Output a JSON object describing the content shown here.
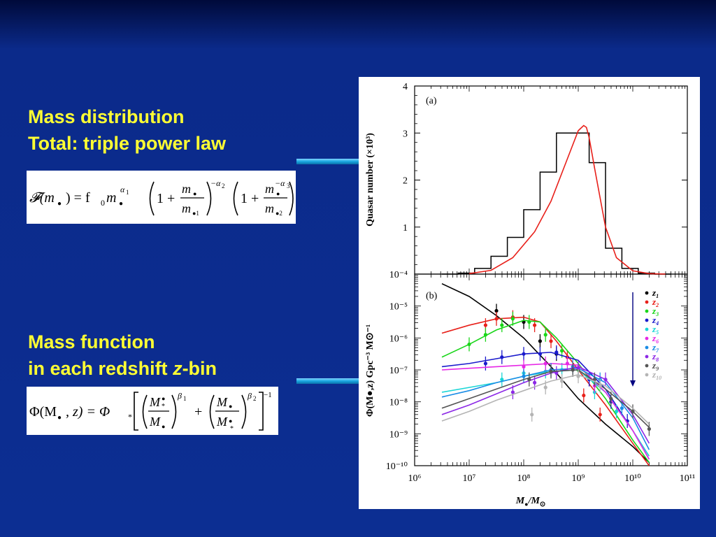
{
  "slide": {
    "heading1_line1": "Mass distribution",
    "heading1_line2": "Total: triple power law",
    "heading2_line1": "Mass function",
    "heading2_line2_a": "in each redshift ",
    "heading2_line2_z": "z",
    "heading2_line2_b": "-bin",
    "formula1_parts": {
      "lhs": "𝓕(m",
      "sub_dot": "●",
      "eq": ") = f",
      "f0_sub": "0",
      "m": "m",
      "alpha1": "α",
      "alpha1_sub": "1",
      "one_plus": "1 +",
      "alpha2": "−α",
      "alpha2_sub": "2",
      "alpha3": "−α",
      "alpha3_sub": "3",
      "den1_sub": "●1",
      "den2_sub": "●2"
    },
    "formula2_parts": {
      "lhs": "Φ(M",
      "z_part": ", z)  =  Φ",
      "star": "*",
      "beta1": "β",
      "beta1_sub": "1",
      "beta2": "β",
      "beta2_sub": "2",
      "plus": "+",
      "neg_one": "−1",
      "Mstar": "M",
      "M": "M"
    },
    "colors": {
      "text": "#ffff33",
      "arrow": "#1aa7e0"
    }
  },
  "chart_data": [
    {
      "type": "bar",
      "panel_label": "(a)",
      "ylabel": "Quasar number (×10³)",
      "xscale": "log",
      "xlim": [
        1000000,
        100000000000
      ],
      "ylim": [
        0,
        4
      ],
      "y_tick_labels": [
        "1",
        "2",
        "3",
        "4"
      ],
      "y_bottom_label": "10⁻⁴",
      "histogram_bins_log10": [
        6.5,
        6.8,
        7.1,
        7.4,
        7.7,
        8.0,
        8.3,
        8.6,
        8.9,
        9.2,
        9.5,
        9.8,
        10.1,
        10.4,
        10.7
      ],
      "histogram_values": [
        0,
        0.02,
        0.12,
        0.38,
        0.78,
        1.37,
        2.17,
        3.0,
        3.0,
        2.37,
        0.55,
        0.12,
        0.02,
        0.0
      ],
      "fit_curve_log10_x": [
        7.0,
        7.4,
        7.8,
        8.2,
        8.5,
        8.8,
        9.0,
        9.1,
        9.15,
        9.2,
        9.3,
        9.5,
        9.7,
        10.0,
        10.3,
        10.6
      ],
      "fit_curve_y": [
        0.01,
        0.08,
        0.35,
        0.9,
        1.55,
        2.45,
        3.05,
        3.16,
        3.12,
        2.9,
        2.25,
        1.0,
        0.35,
        0.07,
        0.01,
        0.0
      ],
      "colors": {
        "histogram": "#000000",
        "fit": "#e8201a"
      }
    },
    {
      "type": "line",
      "panel_label": "(b)",
      "xlabel": "M",
      "xlabel_sub": "●",
      "xlabel_rest": "/M",
      "xlabel_sun": "⊙",
      "ylabel": "Φ(M●,z) Gpc⁻³ M⊙⁻¹",
      "xscale": "log",
      "yscale": "log",
      "xlim": [
        1000000,
        100000000000
      ],
      "ylim": [
        1e-10,
        0.0001
      ],
      "x_tick_labels": [
        "10⁶",
        "10⁷",
        "10⁸",
        "10⁹",
        "10¹⁰",
        "10¹¹"
      ],
      "y_tick_labels": [
        "10⁻¹⁰",
        "10⁻⁹",
        "10⁻⁸",
        "10⁻⁷",
        "10⁻⁶",
        "10⁻⁵"
      ],
      "legend": {
        "position": "top-right",
        "entries": [
          "z1",
          "z2",
          "z3",
          "z4",
          "z5",
          "z6",
          "z7",
          "z8",
          "z9",
          "z10"
        ],
        "labels_main": [
          "z",
          "z",
          "z",
          "z",
          "z",
          "z",
          "z",
          "z",
          "z",
          "z"
        ],
        "labels_sub": [
          "1",
          "2",
          "3",
          "4",
          "5",
          "6",
          "7",
          "8",
          "9",
          "10"
        ],
        "arrow_color": "#000080"
      },
      "series": [
        {
          "name": "z1",
          "color": "#000000",
          "lx": [
            6.5,
            7.0,
            7.5,
            8.0,
            8.5,
            9.0,
            9.5,
            10.0,
            10.3
          ],
          "ly": [
            -4.3,
            -4.7,
            -5.3,
            -6.0,
            -6.9,
            -7.9,
            -8.7,
            -9.4,
            -9.9
          ],
          "pts": [
            [
              7.5,
              -5.15
            ],
            [
              8.0,
              -5.5
            ],
            [
              8.3,
              -6.1
            ],
            [
              8.6,
              -6.5
            ]
          ]
        },
        {
          "name": "z2",
          "color": "#e8201a",
          "lx": [
            6.5,
            7.0,
            7.5,
            8.0,
            8.3,
            8.6,
            9.0,
            9.5,
            10.0,
            10.3
          ],
          "ly": [
            -5.85,
            -5.6,
            -5.4,
            -5.35,
            -5.5,
            -6.1,
            -7.0,
            -8.1,
            -9.3,
            -10.0
          ],
          "pts": [
            [
              7.3,
              -5.6
            ],
            [
              7.5,
              -5.4
            ],
            [
              7.8,
              -5.35
            ],
            [
              8.2,
              -5.6
            ],
            [
              8.5,
              -6.1
            ],
            [
              8.8,
              -6.6
            ],
            [
              9.1,
              -7.8
            ],
            [
              9.4,
              -8.4
            ]
          ]
        },
        {
          "name": "z3",
          "color": "#19d619",
          "lx": [
            6.5,
            7.0,
            7.5,
            8.0,
            8.3,
            8.6,
            9.0,
            9.5,
            10.0,
            10.3
          ],
          "ly": [
            -6.6,
            -6.2,
            -5.75,
            -5.45,
            -5.5,
            -6.0,
            -6.8,
            -7.9,
            -9.2,
            -9.9
          ],
          "pts": [
            [
              7.0,
              -6.2
            ],
            [
              7.3,
              -5.9
            ],
            [
              7.6,
              -5.6
            ],
            [
              7.8,
              -5.4
            ],
            [
              8.1,
              -5.5
            ],
            [
              8.4,
              -5.9
            ],
            [
              8.7,
              -6.4
            ],
            [
              9.0,
              -7.0
            ]
          ]
        },
        {
          "name": "z4",
          "color": "#1a1acc",
          "lx": [
            6.5,
            7.0,
            7.5,
            8.0,
            8.5,
            9.0,
            9.5,
            10.0,
            10.3
          ],
          "ly": [
            -6.9,
            -6.8,
            -6.65,
            -6.5,
            -6.45,
            -6.7,
            -7.6,
            -8.9,
            -9.8
          ],
          "pts": [
            [
              7.3,
              -6.8
            ],
            [
              7.6,
              -6.6
            ],
            [
              8.0,
              -6.5
            ],
            [
              8.3,
              -6.5
            ],
            [
              8.6,
              -6.45
            ],
            [
              9.2,
              -7.3
            ],
            [
              9.6,
              -8.0
            ],
            [
              9.9,
              -8.6
            ]
          ]
        },
        {
          "name": "z5",
          "color": "#19d6d6",
          "lx": [
            6.5,
            7.0,
            7.5,
            8.0,
            8.5,
            9.0,
            9.5,
            10.0,
            10.3
          ],
          "ly": [
            -7.7,
            -7.55,
            -7.4,
            -7.2,
            -7.05,
            -7.0,
            -7.7,
            -8.9,
            -9.7
          ],
          "pts": [
            [
              7.6,
              -7.3
            ],
            [
              8.0,
              -7.1
            ],
            [
              8.4,
              -7.05
            ],
            [
              8.7,
              -7.0
            ],
            [
              9.3,
              -7.7
            ],
            [
              9.7,
              -8.3
            ]
          ]
        },
        {
          "name": "z6",
          "color": "#e628e6",
          "lx": [
            6.5,
            7.0,
            7.5,
            8.0,
            8.5,
            9.0,
            9.5,
            10.0,
            10.3
          ],
          "ly": [
            -7.0,
            -6.95,
            -6.9,
            -6.85,
            -6.8,
            -6.85,
            -7.7,
            -8.9,
            -9.8
          ],
          "pts": [
            [
              8.0,
              -6.9
            ],
            [
              8.4,
              -6.8
            ],
            [
              8.8,
              -6.8
            ],
            [
              9.3,
              -7.5
            ]
          ]
        },
        {
          "name": "z7",
          "color": "#1a8ce6",
          "lx": [
            6.5,
            7.0,
            7.5,
            8.0,
            8.5,
            9.0,
            9.5,
            10.0,
            10.3
          ],
          "ly": [
            -7.85,
            -7.65,
            -7.4,
            -7.2,
            -7.0,
            -6.95,
            -7.4,
            -8.5,
            -9.5
          ],
          "pts": [
            [
              8.0,
              -7.2
            ],
            [
              8.5,
              -7.0
            ],
            [
              8.9,
              -6.9
            ],
            [
              9.4,
              -7.3
            ],
            [
              9.8,
              -8.2
            ]
          ]
        },
        {
          "name": "z8",
          "color": "#8c28e6",
          "lx": [
            6.5,
            7.0,
            7.5,
            8.0,
            8.5,
            9.0,
            9.5,
            10.0,
            10.3
          ],
          "ly": [
            -8.4,
            -8.1,
            -7.75,
            -7.4,
            -7.1,
            -6.9,
            -7.3,
            -8.4,
            -9.3
          ],
          "pts": [
            [
              7.8,
              -7.7
            ],
            [
              8.2,
              -7.4
            ],
            [
              8.6,
              -7.1
            ],
            [
              9.0,
              -6.95
            ],
            [
              9.5,
              -7.3
            ]
          ]
        },
        {
          "name": "z9",
          "color": "#555555",
          "lx": [
            6.5,
            7.0,
            7.5,
            8.0,
            8.5,
            9.0,
            9.5,
            10.0,
            10.3
          ],
          "ly": [
            -8.2,
            -7.9,
            -7.6,
            -7.3,
            -7.05,
            -7.0,
            -7.6,
            -8.3,
            -8.8
          ],
          "pts": [
            [
              8.1,
              -7.3
            ],
            [
              8.5,
              -7.05
            ],
            [
              8.9,
              -7.0
            ],
            [
              9.3,
              -7.3
            ],
            [
              9.6,
              -7.9
            ],
            [
              10.0,
              -8.3
            ],
            [
              10.3,
              -8.85
            ]
          ]
        },
        {
          "name": "z10",
          "color": "#b4b4b4",
          "lx": [
            6.5,
            7.0,
            7.5,
            8.0,
            8.5,
            9.0,
            9.5,
            10.0,
            10.3
          ],
          "ly": [
            -8.6,
            -8.3,
            -7.95,
            -7.65,
            -7.35,
            -7.15,
            -7.5,
            -8.2,
            -8.7
          ],
          "pts": [
            [
              8.15,
              -8.4
            ],
            [
              8.4,
              -7.55
            ],
            [
              8.7,
              -7.35
            ],
            [
              9.0,
              -7.2
            ],
            [
              9.4,
              -7.5
            ]
          ]
        }
      ]
    }
  ]
}
